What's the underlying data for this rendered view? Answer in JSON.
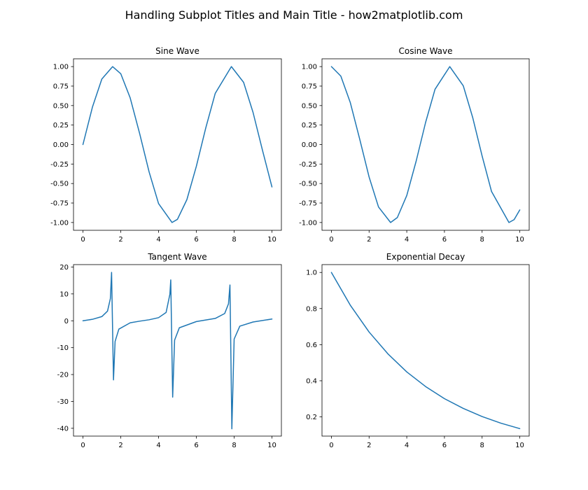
{
  "figure": {
    "title": "Handling Subplot Titles and Main Title - how2matplotlib.com"
  },
  "chart_data": [
    {
      "type": "line",
      "title": "Sine Wave",
      "xlabel": "",
      "ylabel": "",
      "xlim": [
        -0.5,
        10.5
      ],
      "ylim": [
        -1.1,
        1.1
      ],
      "xticks": [
        0,
        2,
        4,
        6,
        8,
        10
      ],
      "yticks": [
        -1.0,
        -0.75,
        -0.5,
        -0.25,
        0.0,
        0.25,
        0.5,
        0.75,
        1.0
      ],
      "xtick_labels": [
        "0",
        "2",
        "4",
        "6",
        "8",
        "10"
      ],
      "ytick_labels": [
        "-1.00",
        "-0.75",
        "-0.50",
        "-0.25",
        "0.00",
        "0.25",
        "0.50",
        "0.75",
        "1.00"
      ],
      "grid": false,
      "series": [
        {
          "color": "#1f77b4",
          "x": [
            0,
            0.5,
            1,
            1.5708,
            2,
            2.5,
            3,
            3.5,
            4,
            4.7124,
            5,
            5.5,
            6,
            6.5,
            7,
            7.854,
            8.5,
            9,
            9.5,
            10
          ],
          "y": [
            0,
            0.479,
            0.841,
            1.0,
            0.909,
            0.598,
            0.141,
            -0.351,
            -0.757,
            -1.0,
            -0.959,
            -0.706,
            -0.279,
            0.215,
            0.657,
            1.0,
            0.798,
            0.412,
            -0.075,
            -0.544
          ]
        }
      ]
    },
    {
      "type": "line",
      "title": "Cosine Wave",
      "xlabel": "",
      "ylabel": "",
      "xlim": [
        -0.5,
        10.5
      ],
      "ylim": [
        -1.1,
        1.1
      ],
      "xticks": [
        0,
        2,
        4,
        6,
        8,
        10
      ],
      "yticks": [
        -1.0,
        -0.75,
        -0.5,
        -0.25,
        0.0,
        0.25,
        0.5,
        0.75,
        1.0
      ],
      "xtick_labels": [
        "0",
        "2",
        "4",
        "6",
        "8",
        "10"
      ],
      "ytick_labels": [
        "-1.00",
        "-0.75",
        "-0.50",
        "-0.25",
        "0.00",
        "0.25",
        "0.50",
        "0.75",
        "1.00"
      ],
      "grid": false,
      "series": [
        {
          "color": "#1f77b4",
          "x": [
            0,
            0.5,
            1,
            1.5,
            2,
            2.5,
            3.1416,
            3.5,
            4,
            4.5,
            5,
            5.5,
            6.2832,
            7,
            7.5,
            8,
            8.5,
            9.4248,
            9.7,
            10
          ],
          "y": [
            1.0,
            0.878,
            0.54,
            0.071,
            -0.416,
            -0.801,
            -1.0,
            -0.936,
            -0.654,
            -0.211,
            0.284,
            0.709,
            1.0,
            0.754,
            0.347,
            -0.146,
            -0.602,
            -1.0,
            -0.963,
            -0.839
          ]
        }
      ]
    },
    {
      "type": "line",
      "title": "Tangent Wave",
      "xlabel": "",
      "ylabel": "",
      "xlim": [
        -0.5,
        10.5
      ],
      "ylim": [
        -42.9,
        20.9
      ],
      "xticks": [
        0,
        2,
        4,
        6,
        8,
        10
      ],
      "yticks": [
        -40,
        -30,
        -20,
        -10,
        0,
        10,
        20
      ],
      "xtick_labels": [
        "0",
        "2",
        "4",
        "6",
        "8",
        "10"
      ],
      "ytick_labels": [
        "-40",
        "-30",
        "-20",
        "-10",
        "0",
        "10",
        "20"
      ],
      "grid": false,
      "series": [
        {
          "color": "#1f77b4",
          "x": [
            0,
            0.5,
            1.0,
            1.3,
            1.45,
            1.515,
            1.616,
            1.7,
            1.9,
            2.5,
            3.0,
            3.5,
            4.0,
            4.4,
            4.6,
            4.646,
            4.747,
            4.85,
            5.1,
            6.0,
            7.0,
            7.5,
            7.7,
            7.778,
            7.879,
            8.0,
            8.3,
            9.0,
            10.0
          ],
          "y": [
            0,
            0.546,
            1.557,
            3.602,
            8.238,
            18.0,
            -22.0,
            -7.7,
            -3.1,
            -0.747,
            -0.143,
            0.375,
            1.158,
            3.096,
            9.887,
            15.2,
            -28.4,
            -7.2,
            -2.6,
            -0.291,
            0.871,
            2.706,
            6.3,
            13.3,
            -40.2,
            -6.8,
            -2.0,
            -0.452,
            0.648
          ]
        }
      ]
    },
    {
      "type": "line",
      "title": "Exponential Decay",
      "xlabel": "",
      "ylabel": "",
      "xlim": [
        -0.5,
        10.5
      ],
      "ylim": [
        0.0935,
        1.0435
      ],
      "xticks": [
        0,
        2,
        4,
        6,
        8,
        10
      ],
      "yticks": [
        0.2,
        0.4,
        0.6,
        0.8,
        1.0
      ],
      "xtick_labels": [
        "0",
        "2",
        "4",
        "6",
        "8",
        "10"
      ],
      "ytick_labels": [
        "0.2",
        "0.4",
        "0.6",
        "0.8",
        "1.0"
      ],
      "grid": false,
      "series": [
        {
          "color": "#1f77b4",
          "x": [
            0,
            1,
            2,
            3,
            4,
            5,
            6,
            7,
            8,
            9,
            10
          ],
          "y": [
            1.0,
            0.819,
            0.67,
            0.549,
            0.449,
            0.368,
            0.301,
            0.247,
            0.202,
            0.165,
            0.135
          ]
        }
      ]
    }
  ]
}
